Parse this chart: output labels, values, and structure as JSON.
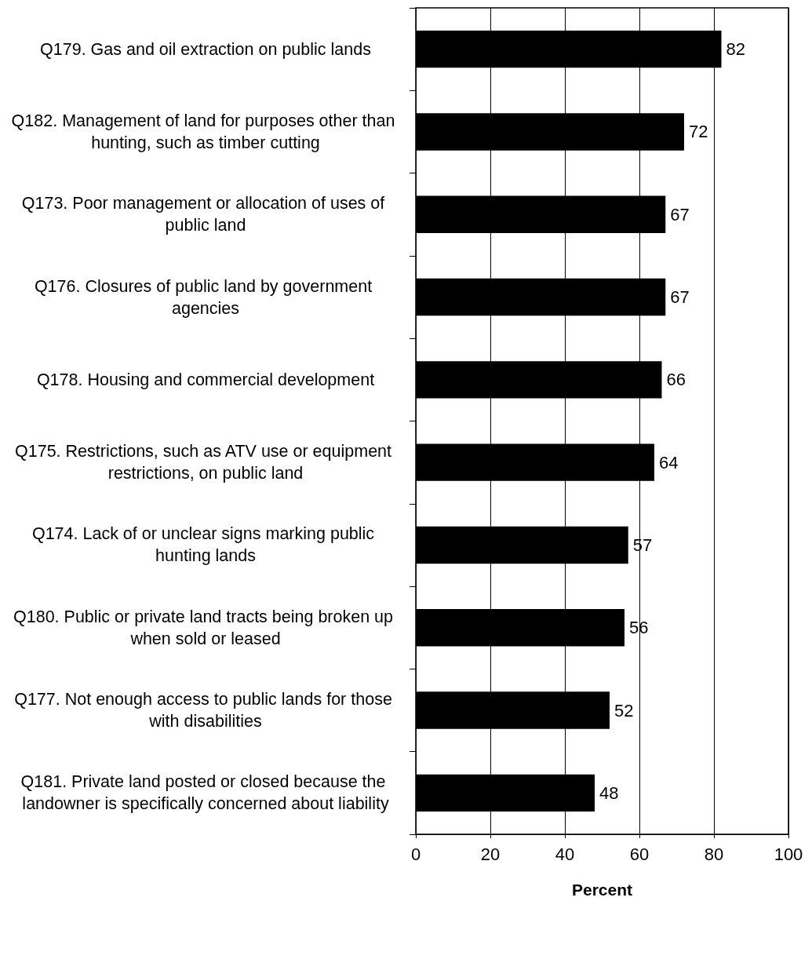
{
  "chart_data": {
    "type": "bar",
    "orientation": "horizontal",
    "xlabel": "Percent",
    "categories": [
      "Q179. Gas and oil extraction on public lands",
      "Q182. Management of land for purposes other than hunting, such as timber cutting",
      "Q173. Poor management or allocation of uses of public land",
      "Q176. Closures of public land by government agencies",
      "Q178. Housing and commercial development",
      "Q175. Restrictions, such as ATV use or equipment restrictions, on public land",
      "Q174. Lack of or unclear signs marking public hunting lands",
      "Q180. Public or private land tracts being broken up when sold or leased",
      "Q177. Not enough access to public lands for those with disabilities",
      "Q181. Private land posted or closed because the landowner is specifically concerned about liability"
    ],
    "values": [
      82,
      72,
      67,
      67,
      66,
      64,
      57,
      56,
      52,
      48
    ],
    "color": "#000000",
    "xlim": [
      0,
      100
    ],
    "xticks": [
      0,
      20,
      40,
      60,
      80,
      100
    ],
    "grid": "x",
    "data_labels": true
  }
}
